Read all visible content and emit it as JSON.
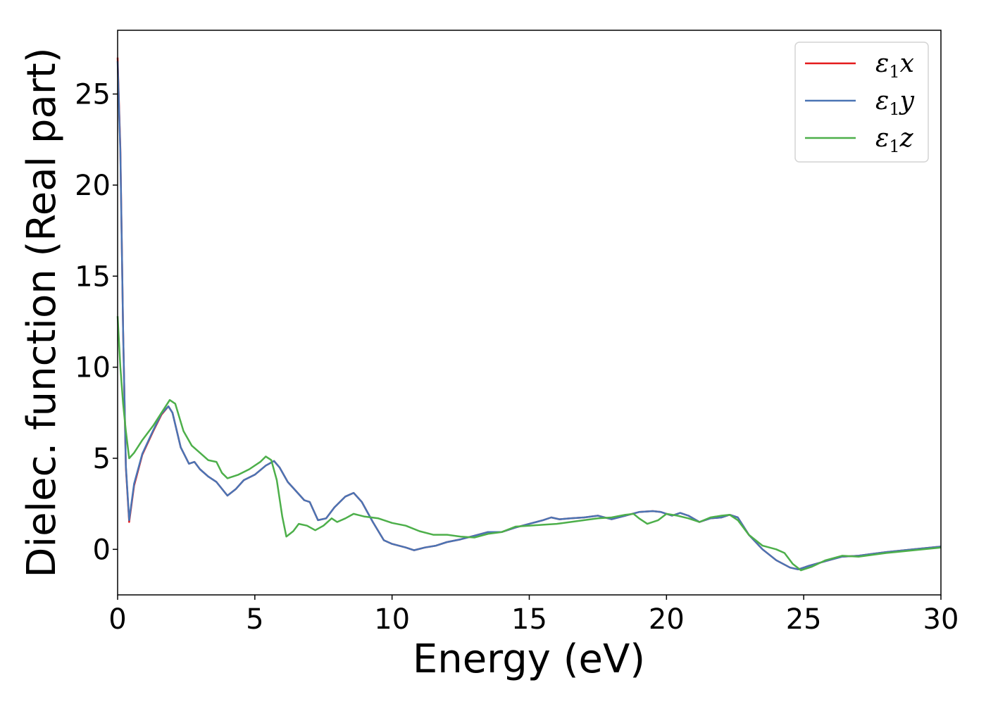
{
  "chart_data": {
    "type": "line",
    "xlabel": "Energy (eV)",
    "ylabel": "Dielec. function (Real part)",
    "xlim": [
      0,
      30
    ],
    "ylim": [
      -2.5,
      28.5
    ],
    "xticks": [
      0,
      5,
      10,
      15,
      20,
      25,
      30
    ],
    "yticks": [
      0,
      5,
      10,
      15,
      20,
      25
    ],
    "grid": false,
    "legend_position": "top-right",
    "series": [
      {
        "name": "ε1x",
        "legend_symbol": "ε",
        "legend_subscript": "1",
        "legend_var": "x",
        "color": "#e41a1c",
        "x": [
          0,
          0.1,
          0.2,
          0.3,
          0.42,
          0.6,
          0.9,
          1.3,
          1.6,
          1.85,
          2.0,
          2.3,
          2.6,
          2.8,
          3.0,
          3.3,
          3.6,
          4.0,
          4.3,
          4.6,
          5.0,
          5.4,
          5.7,
          5.9,
          6.2,
          6.5,
          6.8,
          7.0,
          7.3,
          7.6,
          7.9,
          8.3,
          8.6,
          8.9,
          9.3,
          9.7,
          10.0,
          10.5,
          10.8,
          11.2,
          11.6,
          12.0,
          12.5,
          13.0,
          13.5,
          14.0,
          14.5,
          15.0,
          15.5,
          15.8,
          16.1,
          16.5,
          17.0,
          17.5,
          18.0,
          18.5,
          19.0,
          19.5,
          19.8,
          20.2,
          20.5,
          20.8,
          21.2,
          21.6,
          22.0,
          22.3,
          22.6,
          23.0,
          23.5,
          24.0,
          24.5,
          24.8,
          25.2,
          25.8,
          26.4,
          27.0,
          27.5,
          28.0,
          29.0,
          30.0
        ],
        "y": [
          27.0,
          22.0,
          12.0,
          4.5,
          1.5,
          3.5,
          5.2,
          6.5,
          7.4,
          7.85,
          7.5,
          5.6,
          4.7,
          4.8,
          4.4,
          4.0,
          3.7,
          2.95,
          3.3,
          3.8,
          4.1,
          4.6,
          4.85,
          4.5,
          3.7,
          3.2,
          2.7,
          2.6,
          1.6,
          1.7,
          2.3,
          2.9,
          3.1,
          2.6,
          1.5,
          0.5,
          0.3,
          0.1,
          -0.05,
          0.1,
          0.2,
          0.4,
          0.55,
          0.75,
          0.95,
          0.95,
          1.2,
          1.4,
          1.6,
          1.75,
          1.65,
          1.7,
          1.75,
          1.85,
          1.65,
          1.85,
          2.05,
          2.1,
          2.05,
          1.85,
          2.0,
          1.85,
          1.5,
          1.7,
          1.75,
          1.9,
          1.75,
          0.8,
          0.0,
          -0.6,
          -1.0,
          -1.1,
          -0.9,
          -0.65,
          -0.4,
          -0.35,
          -0.25,
          -0.15,
          0.0,
          0.15
        ]
      },
      {
        "name": "ε1y",
        "legend_symbol": "ε",
        "legend_subscript": "1",
        "legend_var": "y",
        "color": "#4a74b4",
        "x": [
          0,
          0.1,
          0.2,
          0.3,
          0.42,
          0.6,
          0.9,
          1.3,
          1.6,
          1.85,
          2.0,
          2.3,
          2.6,
          2.8,
          3.0,
          3.3,
          3.6,
          4.0,
          4.3,
          4.6,
          5.0,
          5.4,
          5.7,
          5.9,
          6.2,
          6.5,
          6.8,
          7.0,
          7.3,
          7.6,
          7.9,
          8.3,
          8.6,
          8.9,
          9.3,
          9.7,
          10.0,
          10.5,
          10.8,
          11.2,
          11.6,
          12.0,
          12.5,
          13.0,
          13.5,
          14.0,
          14.5,
          15.0,
          15.5,
          15.8,
          16.1,
          16.5,
          17.0,
          17.5,
          18.0,
          18.5,
          19.0,
          19.5,
          19.8,
          20.2,
          20.5,
          20.8,
          21.2,
          21.6,
          22.0,
          22.3,
          22.6,
          23.0,
          23.5,
          24.0,
          24.5,
          24.8,
          25.2,
          25.8,
          26.4,
          27.0,
          27.5,
          28.0,
          29.0,
          30.0
        ],
        "y": [
          26.8,
          21.8,
          12.0,
          4.6,
          1.6,
          3.6,
          5.25,
          6.55,
          7.45,
          7.85,
          7.5,
          5.6,
          4.7,
          4.8,
          4.4,
          4.0,
          3.7,
          2.95,
          3.3,
          3.8,
          4.1,
          4.6,
          4.85,
          4.5,
          3.7,
          3.2,
          2.7,
          2.6,
          1.6,
          1.7,
          2.3,
          2.9,
          3.1,
          2.6,
          1.5,
          0.5,
          0.3,
          0.1,
          -0.05,
          0.1,
          0.2,
          0.4,
          0.55,
          0.75,
          0.95,
          0.95,
          1.2,
          1.4,
          1.6,
          1.75,
          1.65,
          1.7,
          1.75,
          1.85,
          1.65,
          1.85,
          2.05,
          2.1,
          2.05,
          1.85,
          2.0,
          1.85,
          1.5,
          1.7,
          1.75,
          1.9,
          1.75,
          0.8,
          0.0,
          -0.6,
          -1.0,
          -1.1,
          -0.9,
          -0.65,
          -0.4,
          -0.35,
          -0.25,
          -0.15,
          0.0,
          0.15
        ]
      },
      {
        "name": "ε1z",
        "legend_symbol": "ε",
        "legend_subscript": "1",
        "legend_var": "z",
        "color": "#4daf4a",
        "x": [
          0,
          0.1,
          0.2,
          0.3,
          0.42,
          0.6,
          0.9,
          1.3,
          1.6,
          1.9,
          2.1,
          2.4,
          2.7,
          3.0,
          3.3,
          3.6,
          3.8,
          4.0,
          4.4,
          4.8,
          5.2,
          5.4,
          5.6,
          5.8,
          6.0,
          6.15,
          6.4,
          6.6,
          6.9,
          7.2,
          7.5,
          7.8,
          8.0,
          8.3,
          8.6,
          9.0,
          9.5,
          10.0,
          10.5,
          11.0,
          11.5,
          12.0,
          12.5,
          13.0,
          13.5,
          14.0,
          14.5,
          15.0,
          15.5,
          16.0,
          16.5,
          17.0,
          17.5,
          18.0,
          18.5,
          18.8,
          19.0,
          19.3,
          19.7,
          20.0,
          20.4,
          20.8,
          21.2,
          21.6,
          22.0,
          22.3,
          22.6,
          23.0,
          23.5,
          24.0,
          24.3,
          24.6,
          24.9,
          25.3,
          25.8,
          26.4,
          27.0,
          27.5,
          28.0,
          29.0,
          30.0
        ],
        "y": [
          12.8,
          10.0,
          8.0,
          6.5,
          5.0,
          5.3,
          6.0,
          6.8,
          7.5,
          8.2,
          8.0,
          6.5,
          5.7,
          5.3,
          4.9,
          4.8,
          4.2,
          3.9,
          4.1,
          4.4,
          4.8,
          5.1,
          4.9,
          3.8,
          1.8,
          0.7,
          1.0,
          1.4,
          1.3,
          1.05,
          1.3,
          1.7,
          1.5,
          1.7,
          1.95,
          1.8,
          1.7,
          1.45,
          1.3,
          1.0,
          0.8,
          0.8,
          0.7,
          0.65,
          0.85,
          0.95,
          1.25,
          1.3,
          1.35,
          1.4,
          1.5,
          1.6,
          1.7,
          1.75,
          1.9,
          1.95,
          1.7,
          1.4,
          1.6,
          1.95,
          1.85,
          1.7,
          1.5,
          1.75,
          1.85,
          1.9,
          1.6,
          0.8,
          0.2,
          0.0,
          -0.2,
          -0.8,
          -1.15,
          -0.95,
          -0.6,
          -0.35,
          -0.4,
          -0.3,
          -0.2,
          -0.05,
          0.1
        ]
      }
    ]
  }
}
